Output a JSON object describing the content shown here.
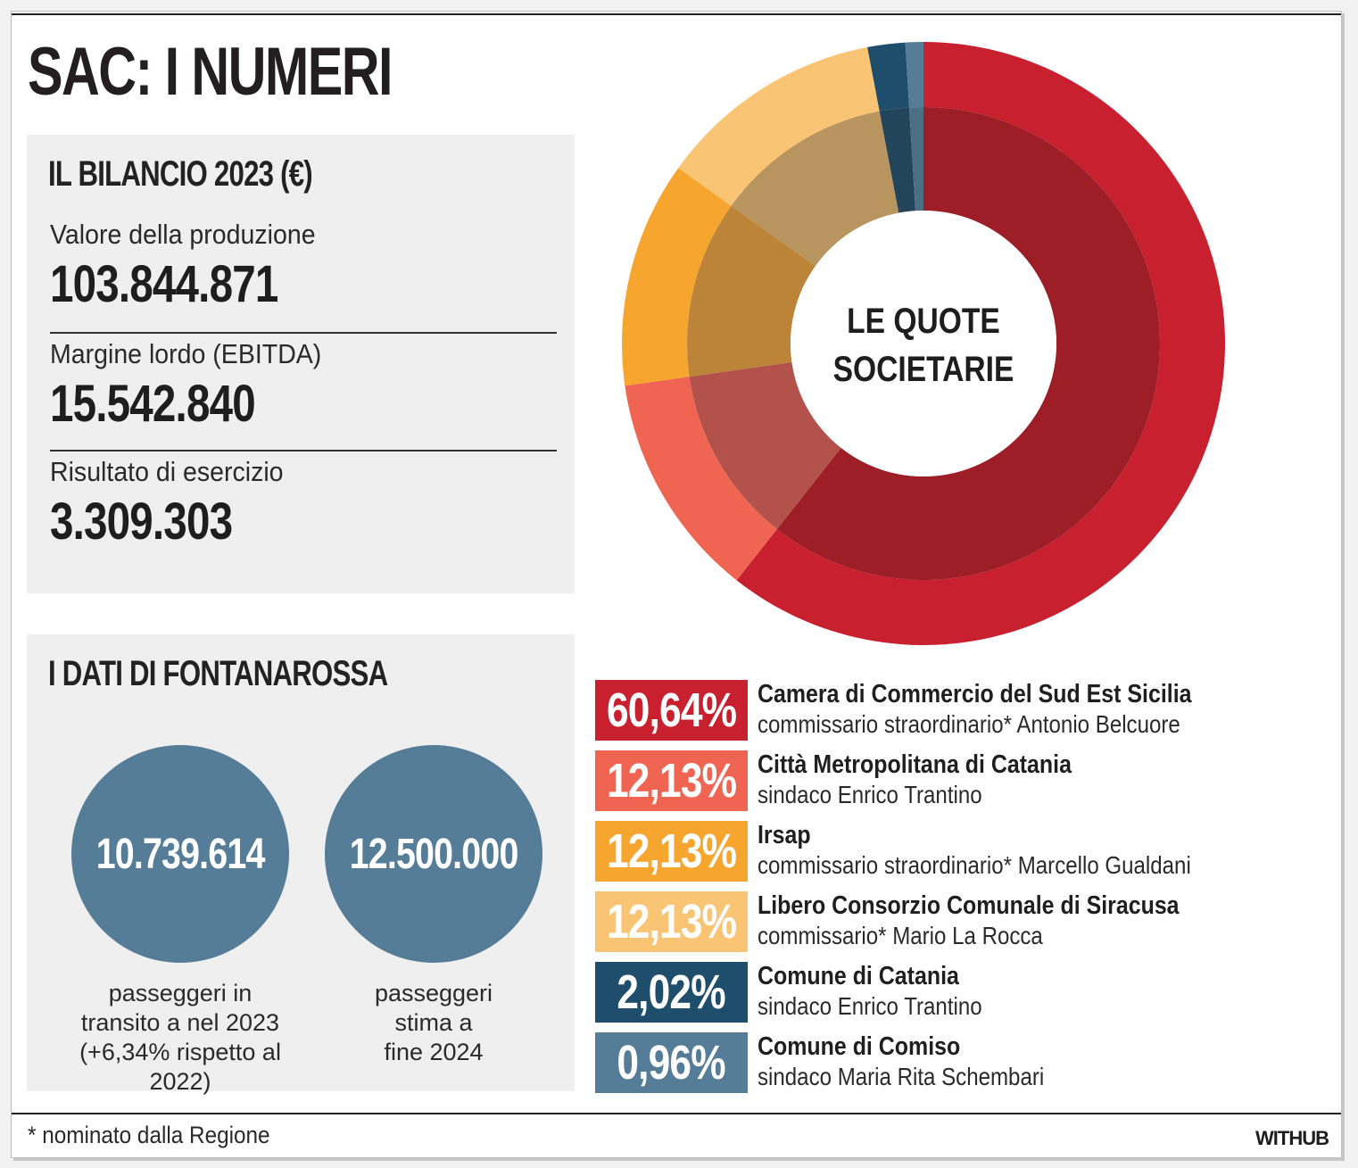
{
  "title": "SAC: I NUMERI",
  "bilancio": {
    "heading": "IL BILANCIO 2023 (€)",
    "metrics": [
      {
        "label": "Valore della produzione",
        "value": "103.844.871"
      },
      {
        "label": "Margine lordo (EBITDA)",
        "value": "15.542.840"
      },
      {
        "label": "Risultato di esercizio",
        "value": "3.309.303"
      }
    ]
  },
  "fontanarossa": {
    "heading": "I DATI DI FONTANAROSSA",
    "stats": [
      {
        "value": "10.739.614",
        "caption_lines": [
          "passeggeri in",
          "transito a nel 2023",
          "(+6,34% rispetto al 2022)"
        ]
      },
      {
        "value": "12.500.000",
        "caption_lines": [
          "passeggeri",
          "stima a",
          "fine 2024"
        ]
      }
    ]
  },
  "chart_data": {
    "type": "pie",
    "variant": "donut",
    "title": "LE QUOTE SOCIETARIE",
    "title_lines": [
      "LE QUOTE",
      "SOCIETARIE"
    ],
    "unit": "%",
    "slices": [
      {
        "label": "60,64%",
        "value": 60.64,
        "name": "Camera di Commercio del Sud Est Sicilia",
        "detail": "commissario straordinario* Antonio Belcuore",
        "color": "#c8202f",
        "inner_color": "#9e1e28"
      },
      {
        "label": "12,13%",
        "value": 12.13,
        "name": "Città Metropolitana di Catania",
        "detail": "sindaco Enrico Trantino",
        "color": "#ef6551",
        "inner_color": "#b3524a"
      },
      {
        "label": "12,13%",
        "value": 12.13,
        "name": "Irsap",
        "detail": "commissario straordinario* Marcello Gualdani",
        "color": "#f6a52e",
        "inner_color": "#bc8438"
      },
      {
        "label": "12,13%",
        "value": 12.13,
        "name": "Libero Consorzio Comunale di Siracusa",
        "detail": "commissario* Mario La Rocca",
        "color": "#f9c575",
        "inner_color": "#b8945f"
      },
      {
        "label": "2,02%",
        "value": 2.02,
        "name": "Comune di Catania",
        "detail": "sindaco Enrico Trantino",
        "color": "#1f4e6d",
        "inner_color": "#23455b"
      },
      {
        "label": "0,96%",
        "value": 0.96,
        "name": "Comune di Comiso",
        "detail": "sindaco Maria Rita Schembari",
        "color": "#557d97",
        "inner_color": "#4c6e85"
      }
    ]
  },
  "footer": {
    "footnote": "* nominato dalla Regione",
    "brand": "WITHUB"
  }
}
